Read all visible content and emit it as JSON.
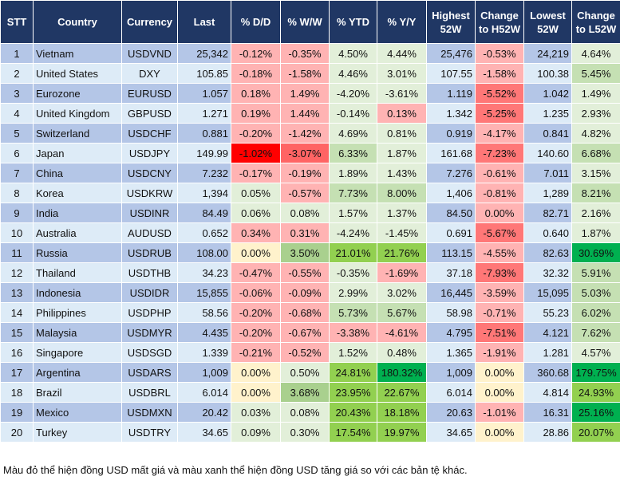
{
  "headers": [
    "STT",
    "Country",
    "Currency",
    "Last",
    "% D/D",
    "% W/W",
    "% YTD",
    "% Y/Y",
    "Highest 52W",
    "Change to H52W",
    "Lowest 52W",
    "Change to L52W"
  ],
  "colors": {
    "row_odd": "#b4c6e7",
    "row_even": "#ddebf7",
    "header": "#203764",
    "light_red": "#ffb3b3",
    "medium_red": "#ff7777",
    "red": "#ff0000",
    "light_green": "#e2efd9",
    "medium_green": "#c5e0b3",
    "green": "#92d050",
    "dark_green": "#00b050",
    "neutral_yellow": "#fff2cc"
  },
  "rows": [
    {
      "stt": "1",
      "country": "Vietnam",
      "currency": "USDVND",
      "last": "25,342",
      "dd": "-0.12%",
      "ww": "-0.35%",
      "ytd": "4.50%",
      "yy": "4.44%",
      "h52": "25,476",
      "ch52": "-0.53%",
      "l52": "24,219",
      "cl52": "4.64%",
      "shade": [
        "lr",
        "lr",
        "lg",
        "lg",
        "lr",
        "lg"
      ]
    },
    {
      "stt": "2",
      "country": "United States",
      "currency": "DXY",
      "last": "105.85",
      "dd": "-0.18%",
      "ww": "-1.58%",
      "ytd": "4.46%",
      "yy": "3.01%",
      "h52": "107.55",
      "ch52": "-1.58%",
      "l52": "100.38",
      "cl52": "5.45%",
      "shade": [
        "lr",
        "lr",
        "lg",
        "lg",
        "lr",
        "mg"
      ]
    },
    {
      "stt": "3",
      "country": "Eurozone",
      "currency": "EURUSD",
      "last": "1.057",
      "dd": "0.18%",
      "ww": "1.49%",
      "ytd": "-4.20%",
      "yy": "-3.61%",
      "h52": "1.119",
      "ch52": "-5.52%",
      "l52": "1.042",
      "cl52": "1.49%",
      "shade": [
        "lr",
        "lr",
        "lg",
        "lg",
        "mr",
        "lg"
      ]
    },
    {
      "stt": "4",
      "country": "United Kingdom",
      "currency": "GBPUSD",
      "last": "1.271",
      "dd": "0.19%",
      "ww": "1.44%",
      "ytd": "-0.14%",
      "yy": "0.13%",
      "h52": "1.342",
      "ch52": "-5.25%",
      "l52": "1.235",
      "cl52": "2.93%",
      "shade": [
        "lr",
        "lr",
        "lg",
        "lr",
        "mr",
        "lg"
      ]
    },
    {
      "stt": "5",
      "country": "Switzerland",
      "currency": "USDCHF",
      "last": "0.881",
      "dd": "-0.20%",
      "ww": "-1.42%",
      "ytd": "4.69%",
      "yy": "0.81%",
      "h52": "0.919",
      "ch52": "-4.17%",
      "l52": "0.841",
      "cl52": "4.82%",
      "shade": [
        "lr",
        "lr",
        "lg",
        "lg",
        "lr",
        "lg"
      ]
    },
    {
      "stt": "6",
      "country": "Japan",
      "currency": "USDJPY",
      "last": "149.99",
      "dd": "-1.02%",
      "ww": "-3.07%",
      "ytd": "6.33%",
      "yy": "1.87%",
      "h52": "161.68",
      "ch52": "-7.23%",
      "l52": "140.60",
      "cl52": "6.68%",
      "shade": [
        "rd",
        "r2",
        "mg",
        "lg",
        "mr",
        "mg"
      ]
    },
    {
      "stt": "7",
      "country": "China",
      "currency": "USDCNY",
      "last": "7.232",
      "dd": "-0.17%",
      "ww": "-0.19%",
      "ytd": "1.89%",
      "yy": "1.43%",
      "h52": "7.276",
      "ch52": "-0.61%",
      "l52": "7.011",
      "cl52": "3.15%",
      "shade": [
        "lr",
        "lr",
        "lg",
        "lg",
        "lr",
        "lg"
      ]
    },
    {
      "stt": "8",
      "country": "Korea",
      "currency": "USDKRW",
      "last": "1,394",
      "dd": "0.05%",
      "ww": "-0.57%",
      "ytd": "7.73%",
      "yy": "8.00%",
      "h52": "1,406",
      "ch52": "-0.81%",
      "l52": "1,289",
      "cl52": "8.21%",
      "shade": [
        "lg",
        "lr",
        "mg",
        "mg",
        "lr",
        "mg"
      ]
    },
    {
      "stt": "9",
      "country": "India",
      "currency": "USDINR",
      "last": "84.49",
      "dd": "0.06%",
      "ww": "0.08%",
      "ytd": "1.57%",
      "yy": "1.37%",
      "h52": "84.50",
      "ch52": "0.00%",
      "l52": "82.71",
      "cl52": "2.16%",
      "shade": [
        "lg",
        "lg",
        "lg",
        "lg",
        "lr",
        "lg"
      ]
    },
    {
      "stt": "10",
      "country": "Australia",
      "currency": "AUDUSD",
      "last": "0.652",
      "dd": "0.34%",
      "ww": "0.31%",
      "ytd": "-4.24%",
      "yy": "-1.45%",
      "h52": "0.691",
      "ch52": "-5.67%",
      "l52": "0.640",
      "cl52": "1.87%",
      "shade": [
        "lr",
        "lr",
        "lg",
        "lg",
        "mr",
        "lg"
      ]
    },
    {
      "stt": "11",
      "country": "Russia",
      "currency": "USDRUB",
      "last": "108.00",
      "dd": "0.00%",
      "ww": "3.50%",
      "ytd": "21.01%",
      "yy": "21.76%",
      "h52": "113.15",
      "ch52": "-4.55%",
      "l52": "82.63",
      "cl52": "30.69%",
      "shade": [
        "y",
        "sg",
        "g",
        "g",
        "lr",
        "dg"
      ]
    },
    {
      "stt": "12",
      "country": "Thailand",
      "currency": "USDTHB",
      "last": "34.23",
      "dd": "-0.47%",
      "ww": "-0.55%",
      "ytd": "-0.35%",
      "yy": "-1.69%",
      "h52": "37.18",
      "ch52": "-7.93%",
      "l52": "32.32",
      "cl52": "5.91%",
      "shade": [
        "lr",
        "lr",
        "lg",
        "lr",
        "mr",
        "mg"
      ]
    },
    {
      "stt": "13",
      "country": "Indonesia",
      "currency": "USDIDR",
      "last": "15,855",
      "dd": "-0.06%",
      "ww": "-0.09%",
      "ytd": "2.99%",
      "yy": "3.02%",
      "h52": "16,445",
      "ch52": "-3.59%",
      "l52": "15,095",
      "cl52": "5.03%",
      "shade": [
        "lr",
        "lr",
        "lg",
        "lg",
        "lr",
        "mg"
      ]
    },
    {
      "stt": "14",
      "country": "Philippines",
      "currency": "USDPHP",
      "last": "58.56",
      "dd": "-0.20%",
      "ww": "-0.68%",
      "ytd": "5.73%",
      "yy": "5.67%",
      "h52": "58.98",
      "ch52": "-0.71%",
      "l52": "55.23",
      "cl52": "6.02%",
      "shade": [
        "lr",
        "lr",
        "mg",
        "mg",
        "lr",
        "mg"
      ]
    },
    {
      "stt": "15",
      "country": "Malaysia",
      "currency": "USDMYR",
      "last": "4.435",
      "dd": "-0.20%",
      "ww": "-0.67%",
      "ytd": "-3.38%",
      "yy": "-4.61%",
      "h52": "4.795",
      "ch52": "-7.51%",
      "l52": "4.121",
      "cl52": "7.62%",
      "shade": [
        "lr",
        "lr",
        "lr",
        "lr",
        "mr",
        "mg"
      ]
    },
    {
      "stt": "16",
      "country": "Singapore",
      "currency": "USDSGD",
      "last": "1.339",
      "dd": "-0.21%",
      "ww": "-0.52%",
      "ytd": "1.52%",
      "yy": "0.48%",
      "h52": "1.365",
      "ch52": "-1.91%",
      "l52": "1.281",
      "cl52": "4.57%",
      "shade": [
        "lr",
        "lr",
        "lg",
        "lg",
        "lr",
        "lg"
      ]
    },
    {
      "stt": "17",
      "country": "Argentina",
      "currency": "USDARS",
      "last": "1,009",
      "dd": "0.00%",
      "ww": "0.50%",
      "ytd": "24.81%",
      "yy": "180.32%",
      "h52": "1,009",
      "ch52": "0.00%",
      "l52": "360.68",
      "cl52": "179.75%",
      "shade": [
        "y",
        "lg",
        "g",
        "dg",
        "y",
        "dg"
      ]
    },
    {
      "stt": "18",
      "country": "Brazil",
      "currency": "USDBRL",
      "last": "6.014",
      "dd": "0.00%",
      "ww": "3.68%",
      "ytd": "23.95%",
      "yy": "22.67%",
      "h52": "6.014",
      "ch52": "0.00%",
      "l52": "4.814",
      "cl52": "24.93%",
      "shade": [
        "y",
        "sg",
        "g",
        "g",
        "y",
        "g"
      ]
    },
    {
      "stt": "19",
      "country": "Mexico",
      "currency": "USDMXN",
      "last": "20.42",
      "dd": "0.03%",
      "ww": "0.08%",
      "ytd": "20.43%",
      "yy": "18.18%",
      "h52": "20.63",
      "ch52": "-1.01%",
      "l52": "16.31",
      "cl52": "25.16%",
      "shade": [
        "lg",
        "lg",
        "g",
        "g",
        "lr",
        "dg"
      ]
    },
    {
      "stt": "20",
      "country": "Turkey",
      "currency": "USDTRY",
      "last": "34.65",
      "dd": "0.09%",
      "ww": "0.30%",
      "ytd": "17.54%",
      "yy": "19.97%",
      "h52": "34.65",
      "ch52": "0.00%",
      "l52": "28.86",
      "cl52": "20.07%",
      "shade": [
        "lg",
        "lg",
        "g",
        "g",
        "y",
        "g"
      ]
    }
  ],
  "footnote": "Màu đỏ thể hiện đồng USD mất giá và màu xanh thể hiện đồng USD tăng giá so với các bản tệ khác."
}
